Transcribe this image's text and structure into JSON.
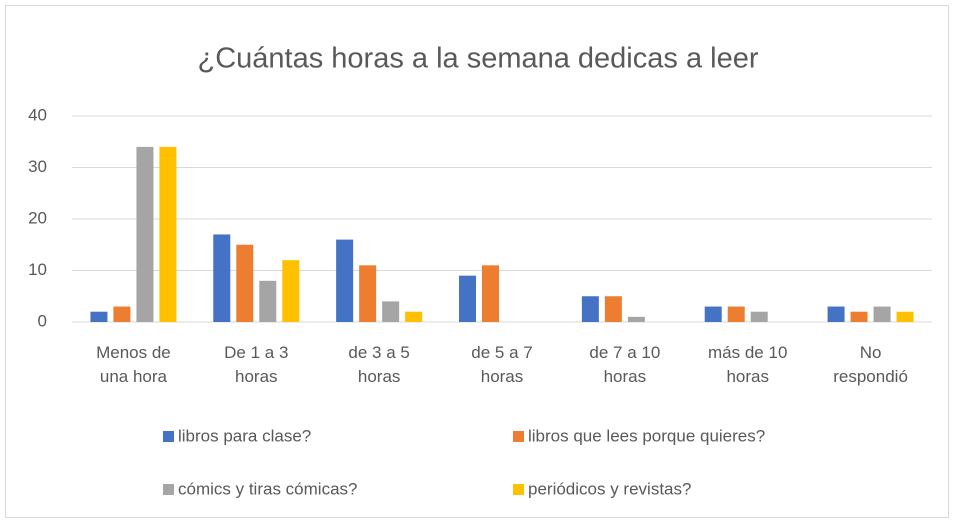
{
  "chart_data": {
    "type": "bar",
    "title": "¿Cuántas horas a la semana dedicas a leer",
    "categories": [
      [
        "Menos de",
        "una hora"
      ],
      [
        "De 1 a 3",
        "horas"
      ],
      [
        "de 3 a 5",
        "horas"
      ],
      [
        "de 5 a 7",
        "horas"
      ],
      [
        "de 7 a 10",
        "horas"
      ],
      [
        "más de 10",
        "horas"
      ],
      [
        "No",
        "respondió"
      ]
    ],
    "series": [
      {
        "name": "libros para clase?",
        "color": "#4472c4",
        "values": [
          2,
          17,
          16,
          9,
          5,
          3,
          3
        ]
      },
      {
        "name": "libros que lees porque quieres?",
        "color": "#ed7d31",
        "values": [
          3,
          15,
          11,
          11,
          5,
          3,
          2
        ]
      },
      {
        "name": "cómics y tiras cómicas?",
        "color": "#a5a5a5",
        "values": [
          34,
          8,
          4,
          0,
          1,
          2,
          3
        ]
      },
      {
        "name": "periódicos y revistas?",
        "color": "#ffc000",
        "values": [
          34,
          12,
          2,
          0,
          0,
          0,
          2
        ]
      }
    ],
    "ylim": [
      0,
      40
    ],
    "yticks": [
      0,
      10,
      20,
      30,
      40
    ],
    "grid": true,
    "legend": "bottom"
  }
}
